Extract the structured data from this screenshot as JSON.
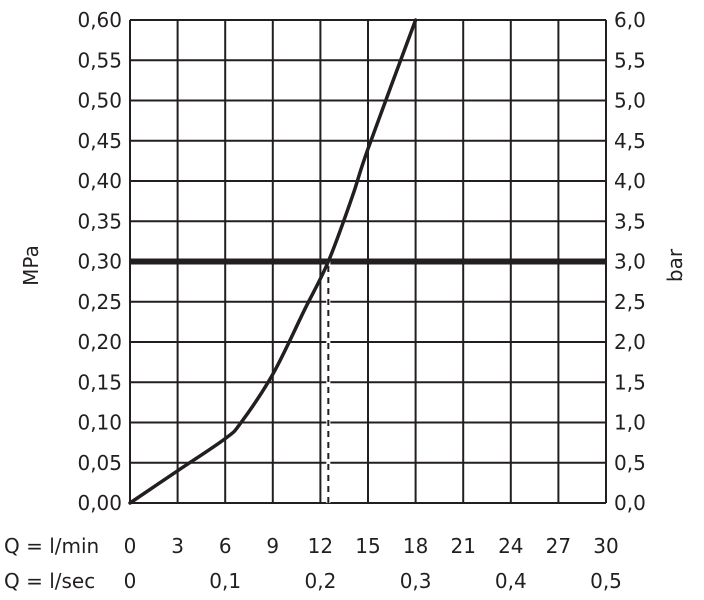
{
  "chart_data": {
    "type": "line",
    "x": [
      0,
      3,
      6,
      7,
      9,
      11,
      12.5,
      14,
      15,
      18
    ],
    "series": [
      {
        "values": [
          0,
          0.04,
          0.08,
          0.1,
          0.16,
          0.24,
          0.3,
          0.38,
          0.44,
          0.6
        ]
      }
    ],
    "reference_line": {
      "axis": "y",
      "value": 0.3
    },
    "marker_line": {
      "axis": "x",
      "value": 12.5,
      "from_y": 0,
      "to_y": 0.3,
      "style": "dashed"
    },
    "xlim": [
      0,
      30
    ],
    "ylim": [
      0,
      0.6
    ],
    "left_axis": {
      "label": "MPa",
      "ticks": [
        "0,00",
        "0,05",
        "0,10",
        "0,15",
        "0,20",
        "0,25",
        "0,30",
        "0,35",
        "0,40",
        "0,45",
        "0,50",
        "0,55",
        "0,60"
      ]
    },
    "right_axis": {
      "label": "bar",
      "ticks": [
        "0,0",
        "0,5",
        "1,0",
        "1,5",
        "2,0",
        "2,5",
        "3,0",
        "3,5",
        "4,0",
        "4,5",
        "5,0",
        "5,5",
        "6,0"
      ]
    },
    "x_axis_primary": {
      "label": "Q = l/min",
      "ticks": [
        "0",
        "3",
        "6",
        "9",
        "12",
        "15",
        "18",
        "21",
        "24",
        "27",
        "30"
      ]
    },
    "x_axis_secondary": {
      "label": "Q = l/sec",
      "ticks": [
        "0",
        "0,1",
        "0,2",
        "0,3",
        "0,4",
        "0,5"
      ]
    },
    "grid": true
  }
}
